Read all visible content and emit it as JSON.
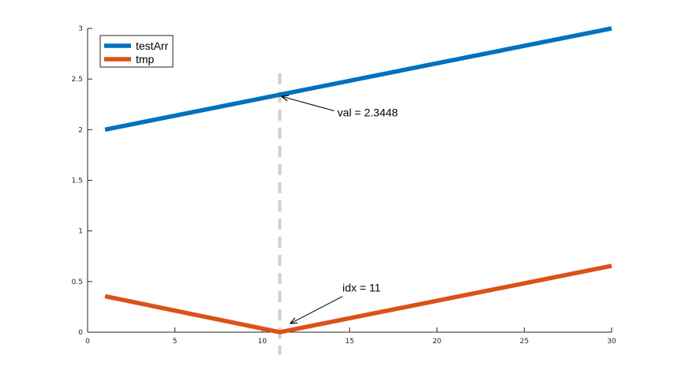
{
  "chart_data": {
    "type": "line",
    "title": "",
    "xlabel": "",
    "ylabel": "",
    "xlim": [
      0,
      30
    ],
    "ylim": [
      0,
      3
    ],
    "xticks": [
      0,
      5,
      10,
      15,
      20,
      25,
      30
    ],
    "xtick_labels": [
      "0",
      "5",
      "10",
      "15",
      "20",
      "25",
      "30"
    ],
    "yticks": [
      0,
      0.5,
      1,
      1.5,
      2,
      2.5,
      3
    ],
    "ytick_labels": [
      "0",
      "0.5",
      "1",
      "1.5",
      "2",
      "2.5",
      "3"
    ],
    "grid": false,
    "legend_position": "top-left",
    "series": [
      {
        "name": "testArr",
        "color": "#0072BD",
        "x": [
          1,
          30
        ],
        "y": [
          2,
          3
        ]
      },
      {
        "name": "tmp",
        "color": "#D95319",
        "x": [
          1,
          11,
          30
        ],
        "y": [
          0.3552,
          0,
          0.6552
        ]
      }
    ],
    "reference_line": {
      "x": 11,
      "color": "#D4CFC6",
      "style": "dashed"
    },
    "annotations": [
      {
        "text": "val = 2.3448",
        "point": [
          11,
          2.3448
        ],
        "text_at": [
          14.3,
          2.17
        ]
      },
      {
        "text": "idx = 11",
        "point": [
          11.5,
          0.1
        ],
        "text_at": [
          14.5,
          0.4
        ]
      }
    ]
  }
}
